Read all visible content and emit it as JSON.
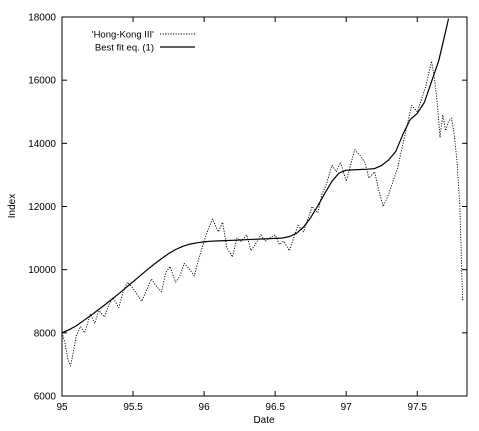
{
  "chart_data": {
    "type": "line",
    "title": "",
    "xlabel": "Date",
    "ylabel": "Index",
    "xlim": [
      95,
      97.85
    ],
    "ylim": [
      6000,
      18000
    ],
    "x_ticks": [
      95,
      95.5,
      96,
      96.5,
      97,
      97.5
    ],
    "x_tick_labels": [
      "95",
      "95.5",
      "96",
      "96.5",
      "97",
      "97.5"
    ],
    "y_ticks": [
      6000,
      8000,
      10000,
      12000,
      14000,
      16000,
      18000
    ],
    "y_tick_labels": [
      "6000",
      "8000",
      "10000",
      "12000",
      "14000",
      "16000",
      "18000"
    ],
    "grid": false,
    "legend_position": "top-left",
    "colors": {
      "axis": "#000000",
      "series": "#000000"
    },
    "series": [
      {
        "name": "'Hong-Kong III'",
        "style": "dotted",
        "x": [
          95.0,
          95.02,
          95.04,
          95.06,
          95.08,
          95.1,
          95.13,
          95.16,
          95.2,
          95.23,
          95.26,
          95.3,
          95.33,
          95.36,
          95.4,
          95.43,
          95.46,
          95.5,
          95.53,
          95.56,
          95.6,
          95.63,
          95.66,
          95.7,
          95.73,
          95.76,
          95.8,
          95.83,
          95.86,
          95.9,
          95.93,
          95.96,
          96.0,
          96.03,
          96.06,
          96.1,
          96.13,
          96.16,
          96.2,
          96.23,
          96.26,
          96.3,
          96.33,
          96.36,
          96.4,
          96.43,
          96.46,
          96.5,
          96.53,
          96.56,
          96.6,
          96.63,
          96.66,
          96.7,
          96.73,
          96.76,
          96.8,
          96.83,
          96.86,
          96.9,
          96.93,
          96.96,
          97.0,
          97.03,
          97.06,
          97.1,
          97.13,
          97.16,
          97.2,
          97.23,
          97.26,
          97.3,
          97.33,
          97.36,
          97.4,
          97.43,
          97.46,
          97.5,
          97.53,
          97.56,
          97.58,
          97.6,
          97.62,
          97.64,
          97.66,
          97.68,
          97.7,
          97.72,
          97.74,
          97.76,
          97.78,
          97.8,
          97.81,
          97.82
        ],
        "values": [
          8000,
          7700,
          7200,
          6950,
          7400,
          7900,
          8200,
          8000,
          8600,
          8300,
          8700,
          8500,
          8900,
          9100,
          8800,
          9300,
          9600,
          9400,
          9200,
          9000,
          9400,
          9700,
          9500,
          9300,
          9900,
          10100,
          9600,
          9800,
          10200,
          10000,
          9800,
          10300,
          10900,
          11300,
          11600,
          11200,
          11500,
          10700,
          10400,
          11000,
          10900,
          11100,
          10600,
          10800,
          11100,
          10900,
          11000,
          11100,
          10800,
          10900,
          10600,
          11000,
          11400,
          11200,
          11600,
          12000,
          11800,
          12400,
          12700,
          13300,
          13100,
          13400,
          12800,
          13300,
          13800,
          13600,
          13400,
          12900,
          13100,
          12500,
          12000,
          12400,
          12800,
          13200,
          14000,
          14600,
          15200,
          15000,
          15400,
          15800,
          16200,
          16600,
          16100,
          15300,
          14200,
          14900,
          14400,
          14700,
          14800,
          14300,
          13400,
          12000,
          10400,
          9000
        ]
      },
      {
        "name": "Best fit eq. (1)",
        "style": "solid",
        "x": [
          95.0,
          95.05,
          95.1,
          95.15,
          95.2,
          95.25,
          95.3,
          95.35,
          95.4,
          95.45,
          95.5,
          95.55,
          95.6,
          95.65,
          95.7,
          95.75,
          95.8,
          95.85,
          95.9,
          95.95,
          96.0,
          96.05,
          96.1,
          96.15,
          96.2,
          96.25,
          96.3,
          96.35,
          96.4,
          96.45,
          96.5,
          96.55,
          96.6,
          96.65,
          96.7,
          96.75,
          96.8,
          96.85,
          96.9,
          96.95,
          97.0,
          97.05,
          97.1,
          97.15,
          97.2,
          97.25,
          97.3,
          97.35,
          97.4,
          97.45,
          97.5,
          97.55,
          97.6,
          97.65,
          97.7,
          97.72
        ],
        "values": [
          8000,
          8100,
          8220,
          8380,
          8540,
          8710,
          8880,
          9060,
          9240,
          9430,
          9620,
          9810,
          10000,
          10180,
          10350,
          10510,
          10640,
          10740,
          10810,
          10850,
          10880,
          10900,
          10910,
          10920,
          10930,
          10940,
          10950,
          10960,
          10970,
          10980,
          10990,
          11000,
          11050,
          11150,
          11350,
          11650,
          12020,
          12420,
          12800,
          13060,
          13150,
          13160,
          13170,
          13180,
          13200,
          13300,
          13480,
          13750,
          14300,
          14750,
          14950,
          15300,
          15950,
          16600,
          17550,
          17950
        ]
      }
    ]
  }
}
